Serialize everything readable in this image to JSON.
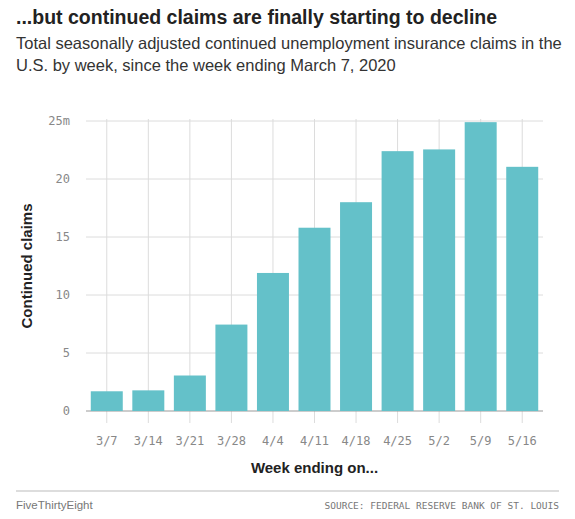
{
  "chart_data": {
    "type": "bar",
    "title": "...but continued claims are finally starting to decline",
    "subtitle": "Total seasonally adjusted continued unemployment insurance claims in the U.S. by week, since the week ending March 7, 2020",
    "x_label": "Week ending on...",
    "y_label": "Continued claims",
    "credit": "FiveThirtyEight",
    "source": "SOURCE: FEDERAL RESERVE BANK OF ST. LOUIS",
    "categories": [
      "3/7",
      "3/14",
      "3/21",
      "3/28",
      "4/4",
      "4/11",
      "4/18",
      "4/25",
      "5/2",
      "5/9",
      "5/16"
    ],
    "values": [
      1.7,
      1.78,
      3.06,
      7.45,
      11.9,
      15.8,
      18.0,
      22.4,
      22.55,
      24.9,
      21.05
    ],
    "color": "#64c1c9",
    "ylim": [
      0,
      25
    ],
    "yticks": [
      0,
      5,
      10,
      15,
      20,
      {
        "value": 25,
        "label": "25m"
      }
    ],
    "grid": true
  }
}
